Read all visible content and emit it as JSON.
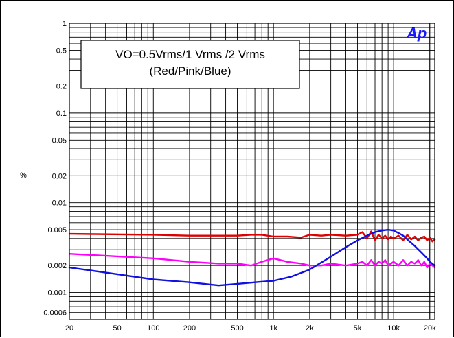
{
  "chart_data": {
    "type": "line",
    "title": "",
    "xlabel": "",
    "ylabel": "%",
    "xscale": "log",
    "yscale": "log",
    "xlim": [
      20,
      22000
    ],
    "ylim": [
      0.0005,
      1
    ],
    "grid": true,
    "x_ticks": [
      {
        "value": 20,
        "label": "20"
      },
      {
        "value": 50,
        "label": "50"
      },
      {
        "value": 100,
        "label": "100"
      },
      {
        "value": 200,
        "label": "200"
      },
      {
        "value": 500,
        "label": "500"
      },
      {
        "value": 1000,
        "label": "1k"
      },
      {
        "value": 2000,
        "label": "2k"
      },
      {
        "value": 5000,
        "label": "5k"
      },
      {
        "value": 10000,
        "label": "10k"
      },
      {
        "value": 20000,
        "label": "20k"
      }
    ],
    "y_ticks": [
      {
        "value": 1,
        "label": "1"
      },
      {
        "value": 0.5,
        "label": "0.5"
      },
      {
        "value": 0.2,
        "label": "0.2"
      },
      {
        "value": 0.1,
        "label": "0.1"
      },
      {
        "value": 0.05,
        "label": "0.05"
      },
      {
        "value": 0.02,
        "label": "0.02"
      },
      {
        "value": 0.01,
        "label": "0.01"
      },
      {
        "value": 0.005,
        "label": "0.005"
      },
      {
        "value": 0.002,
        "label": "0.002"
      },
      {
        "value": 0.001,
        "label": "0.001"
      },
      {
        "value": 0.0006,
        "label": "0.0006"
      }
    ],
    "annotation": {
      "line1": "VO=0.5Vrms/1 Vrms /2 Vrms",
      "line2": "(Red/Pink/Blue)"
    },
    "logo": "Ap",
    "series": [
      {
        "color": "#e00000",
        "x": [
          20,
          100,
          200,
          350,
          500,
          650,
          800,
          1000,
          1300,
          1700,
          2000,
          2500,
          3000,
          4000,
          5000,
          5500,
          6000,
          6500,
          7000,
          7500,
          8000,
          8500,
          9000,
          9500,
          10000,
          11000,
          12000,
          13000,
          14000,
          15000,
          16000,
          17000,
          18000,
          19000,
          20000,
          21000,
          22000
        ],
        "y": [
          0.0045,
          0.0044,
          0.0043,
          0.0043,
          0.0043,
          0.0044,
          0.0044,
          0.0042,
          0.0042,
          0.0041,
          0.0044,
          0.0043,
          0.0044,
          0.0043,
          0.0044,
          0.0047,
          0.004,
          0.0048,
          0.0038,
          0.0044,
          0.004,
          0.0043,
          0.0039,
          0.0042,
          0.004,
          0.0043,
          0.0038,
          0.0044,
          0.0039,
          0.0042,
          0.0038,
          0.0041,
          0.0042,
          0.0038,
          0.0041,
          0.0037,
          0.0039
        ]
      },
      {
        "color": "#ff00ff",
        "x": [
          20,
          100,
          200,
          350,
          500,
          650,
          800,
          1000,
          1300,
          1700,
          2000,
          2500,
          3000,
          4000,
          5000,
          5500,
          6000,
          6500,
          7000,
          7500,
          8000,
          8500,
          9000,
          10000,
          11000,
          12000,
          13000,
          14000,
          15000,
          16000,
          17000,
          18000,
          19000,
          20000,
          21000,
          22000
        ],
        "y": [
          0.0027,
          0.0024,
          0.0022,
          0.0021,
          0.0021,
          0.002,
          0.0022,
          0.0024,
          0.0022,
          0.0021,
          0.002,
          0.002,
          0.0021,
          0.002,
          0.0021,
          0.0022,
          0.002,
          0.0023,
          0.002,
          0.0022,
          0.0021,
          0.0023,
          0.002,
          0.0022,
          0.002,
          0.0023,
          0.002,
          0.0022,
          0.0021,
          0.0023,
          0.002,
          0.0022,
          0.0019,
          0.0021,
          0.002,
          0.0019
        ]
      },
      {
        "color": "#1010e0",
        "x": [
          20,
          50,
          100,
          200,
          350,
          500,
          700,
          1000,
          1400,
          2000,
          3000,
          4000,
          5000,
          6000,
          7000,
          8000,
          9000,
          10000,
          11000,
          12000,
          13000,
          15000,
          17000,
          19000,
          20000,
          22000
        ],
        "y": [
          0.0019,
          0.0016,
          0.0014,
          0.0013,
          0.0012,
          0.00125,
          0.0013,
          0.00135,
          0.0015,
          0.0018,
          0.0025,
          0.0032,
          0.0038,
          0.0043,
          0.0047,
          0.0049,
          0.005,
          0.0049,
          0.0046,
          0.0043,
          0.0039,
          0.0033,
          0.0028,
          0.0024,
          0.0022,
          0.002
        ]
      }
    ]
  }
}
